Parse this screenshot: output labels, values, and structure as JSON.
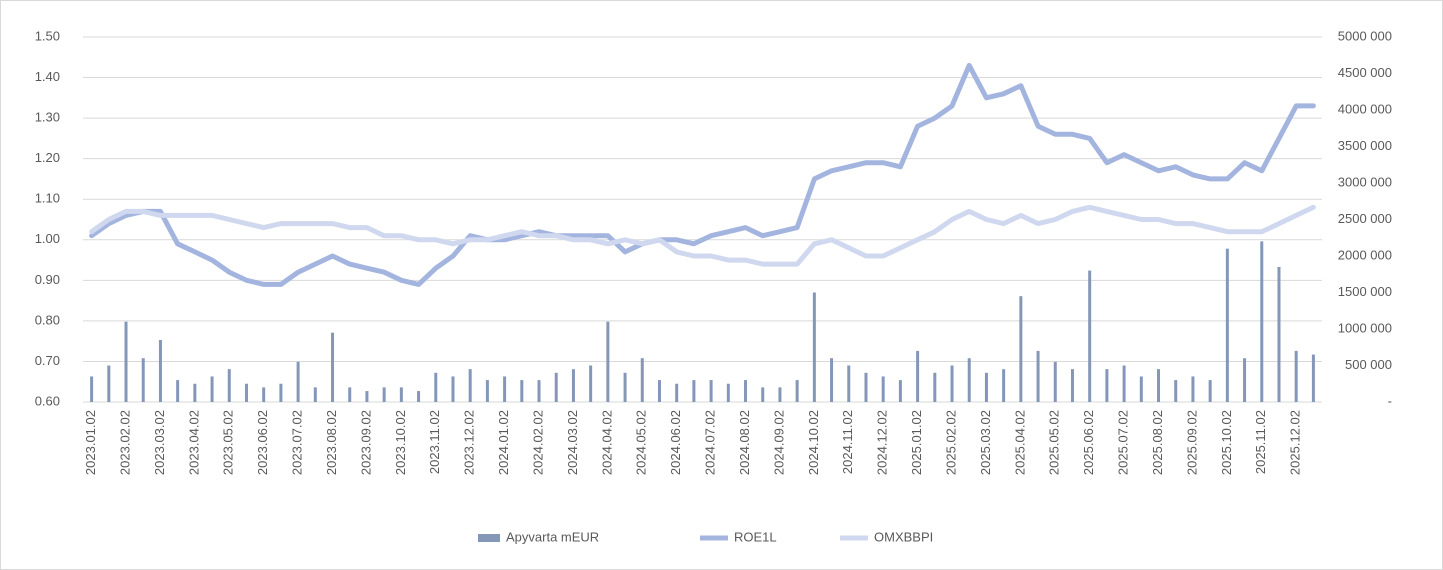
{
  "chart_data": {
    "type": "bar-line",
    "categories": [
      "2023.01.02",
      null,
      "2023.02.02",
      null,
      "2023.03.02",
      null,
      "2023.04.02",
      null,
      "2023.05.02",
      null,
      "2023.06.02",
      null,
      "2023.07.02",
      null,
      "2023.08.02",
      null,
      "2023.09.02",
      null,
      "2023.10.02",
      null,
      "2023.11.02",
      null,
      "2023.12.02",
      null,
      "2024.01.02",
      null,
      "2024.02.02",
      null,
      "2024.03.02",
      null,
      "2024.04.02",
      null,
      "2024.05.02",
      null,
      "2024.06.02",
      null,
      "2024.07.02",
      null,
      "2024.08.02",
      null,
      "2024.09.02",
      null,
      "2024.10.02",
      null,
      "2024.11.02",
      null,
      "2024.12.02",
      null,
      "2025.01.02",
      null,
      "2025.02.02",
      null,
      "2025.03.02",
      null,
      "2025.04.02",
      null,
      "2025.05.02",
      null,
      "2025.06.02",
      null,
      "2025.07.02",
      null,
      "2025.08.02",
      null,
      "2025.09.02",
      null,
      "2025.10.02",
      null,
      "2025.11.02",
      null,
      "2025.12.02",
      null
    ],
    "series": [
      {
        "name": "Apyvarta mEUR",
        "type": "bar",
        "axis": "y2",
        "color": "#8497b8",
        "values": [
          350000,
          500000,
          1100000,
          600000,
          850000,
          300000,
          250000,
          350000,
          450000,
          250000,
          200000,
          250000,
          550000,
          200000,
          950000,
          200000,
          150000,
          200000,
          200000,
          150000,
          400000,
          350000,
          450000,
          300000,
          350000,
          300000,
          300000,
          400000,
          450000,
          500000,
          1100000,
          400000,
          600000,
          300000,
          250000,
          300000,
          300000,
          250000,
          300000,
          200000,
          200000,
          300000,
          1500000,
          600000,
          500000,
          400000,
          350000,
          300000,
          700000,
          400000,
          500000,
          600000,
          400000,
          450000,
          1450000,
          700000,
          550000,
          450000,
          1800000,
          450000,
          500000,
          350000,
          450000,
          300000,
          350000,
          300000,
          2100000,
          600000,
          2200000,
          1850000,
          700000,
          650000
        ]
      },
      {
        "name": "ROE1L",
        "type": "line",
        "color": "#a3b5df",
        "values": [
          1.01,
          1.04,
          1.06,
          1.07,
          1.07,
          0.99,
          0.97,
          0.95,
          0.92,
          0.9,
          0.89,
          0.89,
          0.92,
          0.94,
          0.96,
          0.94,
          0.93,
          0.92,
          0.9,
          0.89,
          0.93,
          0.96,
          1.01,
          1.0,
          1.0,
          1.01,
          1.02,
          1.01,
          1.01,
          1.01,
          1.01,
          0.97,
          0.99,
          1.0,
          1.0,
          0.99,
          1.01,
          1.02,
          1.03,
          1.01,
          1.02,
          1.03,
          1.15,
          1.17,
          1.18,
          1.19,
          1.19,
          1.18,
          1.28,
          1.3,
          1.33,
          1.43,
          1.35,
          1.36,
          1.38,
          1.28,
          1.26,
          1.26,
          1.25,
          1.19,
          1.21,
          1.19,
          1.17,
          1.18,
          1.16,
          1.15,
          1.15,
          1.19,
          1.17,
          1.25,
          1.33,
          1.33
        ]
      },
      {
        "name": "OMXBBPI",
        "type": "line",
        "color": "#cfd8ee",
        "values": [
          1.02,
          1.05,
          1.07,
          1.07,
          1.06,
          1.06,
          1.06,
          1.06,
          1.05,
          1.04,
          1.03,
          1.04,
          1.04,
          1.04,
          1.04,
          1.03,
          1.03,
          1.01,
          1.01,
          1.0,
          1.0,
          0.99,
          1.0,
          1.0,
          1.01,
          1.02,
          1.01,
          1.01,
          1.0,
          1.0,
          0.99,
          1.0,
          0.99,
          1.0,
          0.97,
          0.96,
          0.96,
          0.95,
          0.95,
          0.94,
          0.94,
          0.94,
          0.99,
          1.0,
          0.98,
          0.96,
          0.96,
          0.98,
          1.0,
          1.02,
          1.05,
          1.07,
          1.05,
          1.04,
          1.06,
          1.04,
          1.05,
          1.07,
          1.08,
          1.07,
          1.06,
          1.05,
          1.05,
          1.04,
          1.04,
          1.03,
          1.02,
          1.02,
          1.02,
          1.04,
          1.06,
          1.08
        ]
      }
    ],
    "ylim": [
      0.6,
      1.5
    ],
    "yticks": [
      {
        "value": 0.6,
        "label": "0.60"
      },
      {
        "value": 0.7,
        "label": "0.70"
      },
      {
        "value": 0.8,
        "label": "0.80"
      },
      {
        "value": 0.9,
        "label": "0.90"
      },
      {
        "value": 1.0,
        "label": "1.00"
      },
      {
        "value": 1.1,
        "label": "1.10"
      },
      {
        "value": 1.2,
        "label": "1.20"
      },
      {
        "value": 1.3,
        "label": "1.30"
      },
      {
        "value": 1.4,
        "label": "1.40"
      },
      {
        "value": 1.5,
        "label": "1.50"
      }
    ],
    "y2lim": [
      0,
      5000000
    ],
    "y2ticks": [
      {
        "value": 0,
        "label": "-"
      },
      {
        "value": 500000,
        "label": "500 000"
      },
      {
        "value": 1000000,
        "label": "1000 000"
      },
      {
        "value": 1500000,
        "label": "1500 000"
      },
      {
        "value": 2000000,
        "label": "2000 000"
      },
      {
        "value": 2500000,
        "label": "2500 000"
      },
      {
        "value": 3000000,
        "label": "3000 000"
      },
      {
        "value": 3500000,
        "label": "3500 000"
      },
      {
        "value": 4000000,
        "label": "4000 000"
      },
      {
        "value": 4500000,
        "label": "4500 000"
      },
      {
        "value": 5000000,
        "label": "5000 000"
      }
    ],
    "grid": true,
    "legend": "bottom"
  }
}
